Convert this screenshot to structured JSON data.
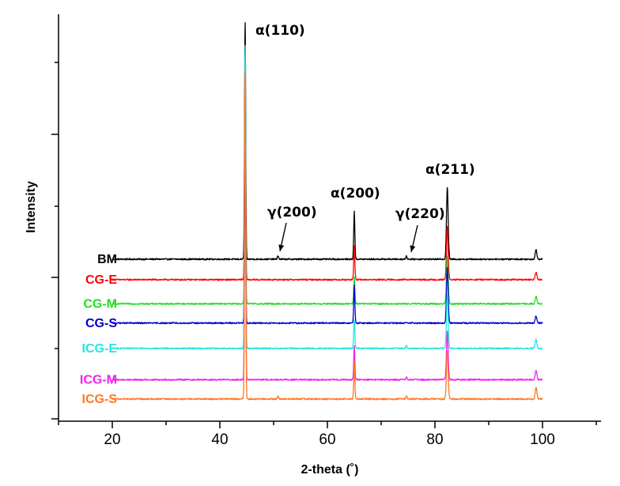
{
  "chart_data": {
    "type": "line",
    "xlabel": "2-theta (˚)",
    "ylabel": "Intensity",
    "xlim": [
      10,
      110
    ],
    "x_ticks": [
      "20",
      "40",
      "60",
      "80",
      "100"
    ],
    "y_ticks_labeled": false,
    "grid": false,
    "x_range_plotted": [
      20,
      100
    ],
    "series": [
      {
        "name": "BM",
        "color": "#000000",
        "baseline": 0.0,
        "peaks": [
          {
            "x": 44.7,
            "height": 1.0
          },
          {
            "x": 65.0,
            "height": 0.2
          },
          {
            "x": 82.3,
            "height": 0.3
          },
          {
            "x": 98.8,
            "height": 0.04
          },
          {
            "x": 50.8,
            "height": 0.015
          },
          {
            "x": 74.7,
            "height": 0.015
          }
        ]
      },
      {
        "name": "CG-E",
        "color": "#ff0000",
        "baseline": -0.085,
        "peaks": [
          {
            "x": 44.7,
            "height": 0.7
          },
          {
            "x": 65.0,
            "height": 0.14
          },
          {
            "x": 82.3,
            "height": 0.22
          },
          {
            "x": 98.8,
            "height": 0.03
          }
        ]
      },
      {
        "name": "CG-M",
        "color": "#22dd22",
        "baseline": -0.185,
        "peaks": [
          {
            "x": 44.7,
            "height": 0.73
          },
          {
            "x": 65.0,
            "height": 0.11
          },
          {
            "x": 82.3,
            "height": 0.2
          },
          {
            "x": 98.8,
            "height": 0.03
          }
        ]
      },
      {
        "name": "CG-S",
        "color": "#0000cc",
        "baseline": -0.265,
        "peaks": [
          {
            "x": 44.7,
            "height": 0.7
          },
          {
            "x": 65.0,
            "height": 0.16
          },
          {
            "x": 82.3,
            "height": 0.23
          },
          {
            "x": 98.8,
            "height": 0.03
          }
        ]
      },
      {
        "name": "ICG-E",
        "color": "#22e5e5",
        "baseline": -0.37,
        "peaks": [
          {
            "x": 44.7,
            "height": 1.28
          },
          {
            "x": 65.0,
            "height": 0.12
          },
          {
            "x": 82.3,
            "height": 0.22
          },
          {
            "x": 98.8,
            "height": 0.04
          },
          {
            "x": 74.7,
            "height": 0.012
          }
        ]
      },
      {
        "name": "ICG-M",
        "color": "#ee22ee",
        "baseline": -0.5,
        "peaks": [
          {
            "x": 44.7,
            "height": 1.1
          },
          {
            "x": 65.0,
            "height": 0.14
          },
          {
            "x": 82.3,
            "height": 0.2
          },
          {
            "x": 98.8,
            "height": 0.04
          },
          {
            "x": 74.7,
            "height": 0.012
          }
        ]
      },
      {
        "name": "ICG-S",
        "color": "#ff7722",
        "baseline": -0.58,
        "peaks": [
          {
            "x": 44.7,
            "height": 1.38
          },
          {
            "x": 65.0,
            "height": 0.15
          },
          {
            "x": 82.3,
            "height": 0.2
          },
          {
            "x": 98.8,
            "height": 0.05
          },
          {
            "x": 50.8,
            "height": 0.012
          },
          {
            "x": 74.7,
            "height": 0.012
          }
        ]
      }
    ],
    "annotations": [
      {
        "text": "α(110)",
        "x": 44.7,
        "arrow": false
      },
      {
        "text": "γ(200)",
        "x": 50.8,
        "arrow": true
      },
      {
        "text": "α(200)",
        "x": 65.0,
        "arrow": false
      },
      {
        "text": "γ(220)",
        "x": 74.7,
        "arrow": true
      },
      {
        "text": "α(211)",
        "x": 82.3,
        "arrow": false
      }
    ]
  }
}
